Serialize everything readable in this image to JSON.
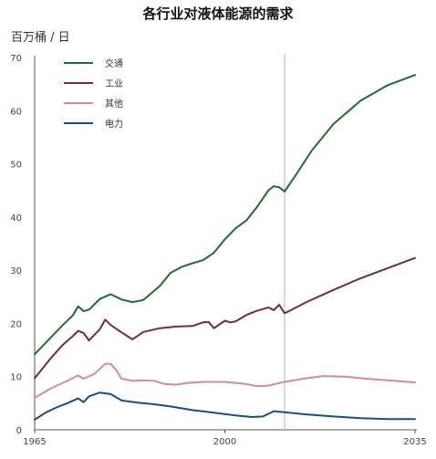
{
  "chart_data": {
    "type": "line",
    "title": "各行业对液体能源的需求",
    "ylabel": "百万桶 / 日",
    "xlabel": "",
    "xlim": [
      1965,
      2035
    ],
    "ylim": [
      0,
      70
    ],
    "x_ticks": [
      "1965",
      "2000",
      "2035"
    ],
    "y_ticks": [
      "0",
      "10",
      "20",
      "30",
      "40",
      "50",
      "60",
      "70"
    ],
    "projection_start": 2011,
    "grid": false,
    "legend_position": "top-left",
    "series": [
      {
        "name": "交通",
        "color": "#1e6b35",
        "points": [
          [
            1965,
            14.2
          ],
          [
            1970,
            19.5
          ],
          [
            1972,
            21.5
          ],
          [
            1973,
            23.2
          ],
          [
            1974,
            22.3
          ],
          [
            1975,
            22.6
          ],
          [
            1977,
            24.6
          ],
          [
            1979,
            25.5
          ],
          [
            1981,
            24.5
          ],
          [
            1983,
            24.0
          ],
          [
            1985,
            24.4
          ],
          [
            1988,
            27
          ],
          [
            1990,
            29.5
          ],
          [
            1992,
            30.6
          ],
          [
            1994,
            31.3
          ],
          [
            1996,
            31.9
          ],
          [
            1998,
            33.3
          ],
          [
            2000,
            35.8
          ],
          [
            2002,
            37.9
          ],
          [
            2004,
            39.4
          ],
          [
            2006,
            42
          ],
          [
            2008,
            45
          ],
          [
            2009,
            45.8
          ],
          [
            2010,
            45.6
          ],
          [
            2011,
            44.8
          ],
          [
            2013,
            47.8
          ],
          [
            2016,
            52.5
          ],
          [
            2020,
            57.5
          ],
          [
            2025,
            61.9
          ],
          [
            2030,
            64.8
          ],
          [
            2035,
            66.7
          ]
        ]
      },
      {
        "name": "工业",
        "color": "#6e2e3b",
        "points": [
          [
            1965,
            9.7
          ],
          [
            1968,
            13.5
          ],
          [
            1970,
            15.8
          ],
          [
            1972,
            17.6
          ],
          [
            1973,
            18.6
          ],
          [
            1974,
            18.2
          ],
          [
            1975,
            16.8
          ],
          [
            1977,
            18.9
          ],
          [
            1978,
            20.7
          ],
          [
            1979,
            19.7
          ],
          [
            1981,
            18.3
          ],
          [
            1983,
            17.0
          ],
          [
            1985,
            18.4
          ],
          [
            1988,
            19.1
          ],
          [
            1991,
            19.4
          ],
          [
            1994,
            19.5
          ],
          [
            1996,
            20.2
          ],
          [
            1997,
            20.3
          ],
          [
            1998,
            19.1
          ],
          [
            1999,
            19.8
          ],
          [
            2000,
            20.5
          ],
          [
            2001,
            20.2
          ],
          [
            2002,
            20.4
          ],
          [
            2004,
            21.6
          ],
          [
            2006,
            22.4
          ],
          [
            2008,
            23.0
          ],
          [
            2009,
            22.5
          ],
          [
            2010,
            23.5
          ],
          [
            2011,
            21.9
          ],
          [
            2015,
            24
          ],
          [
            2020,
            26.3
          ],
          [
            2025,
            28.5
          ],
          [
            2030,
            30.4
          ],
          [
            2035,
            32.3
          ]
        ]
      },
      {
        "name": "其他",
        "color": "#d48aa0",
        "points": [
          [
            1965,
            6.0
          ],
          [
            1968,
            7.8
          ],
          [
            1971,
            9.2
          ],
          [
            1973,
            10.2
          ],
          [
            1974,
            9.6
          ],
          [
            1976,
            10.5
          ],
          [
            1978,
            12.4
          ],
          [
            1979,
            12.4
          ],
          [
            1980,
            11.2
          ],
          [
            1981,
            9.6
          ],
          [
            1983,
            9.2
          ],
          [
            1985,
            9.3
          ],
          [
            1987,
            9.2
          ],
          [
            1989,
            8.6
          ],
          [
            1991,
            8.5
          ],
          [
            1993,
            8.8
          ],
          [
            1996,
            9.0
          ],
          [
            2000,
            9.0
          ],
          [
            2004,
            8.6
          ],
          [
            2006,
            8.2
          ],
          [
            2008,
            8.3
          ],
          [
            2011,
            9.0
          ],
          [
            2015,
            9.7
          ],
          [
            2018,
            10.1
          ],
          [
            2022,
            10.0
          ],
          [
            2026,
            9.6
          ],
          [
            2030,
            9.3
          ],
          [
            2035,
            8.9
          ]
        ]
      },
      {
        "name": "电力",
        "color": "#1f4a8a",
        "points": [
          [
            1965,
            1.9
          ],
          [
            1967,
            3.2
          ],
          [
            1969,
            4.2
          ],
          [
            1971,
            5.0
          ],
          [
            1973,
            5.9
          ],
          [
            1974,
            5.2
          ],
          [
            1975,
            6.3
          ],
          [
            1977,
            7.0
          ],
          [
            1979,
            6.7
          ],
          [
            1981,
            5.5
          ],
          [
            1984,
            5.1
          ],
          [
            1987,
            4.8
          ],
          [
            1990,
            4.4
          ],
          [
            1994,
            3.7
          ],
          [
            1998,
            3.2
          ],
          [
            2002,
            2.7
          ],
          [
            2005,
            2.4
          ],
          [
            2007,
            2.5
          ],
          [
            2008,
            3.0
          ],
          [
            2009,
            3.5
          ],
          [
            2011,
            3.3
          ],
          [
            2015,
            2.9
          ],
          [
            2020,
            2.5
          ],
          [
            2025,
            2.2
          ],
          [
            2030,
            2.0
          ],
          [
            2035,
            2.0
          ]
        ]
      }
    ]
  }
}
